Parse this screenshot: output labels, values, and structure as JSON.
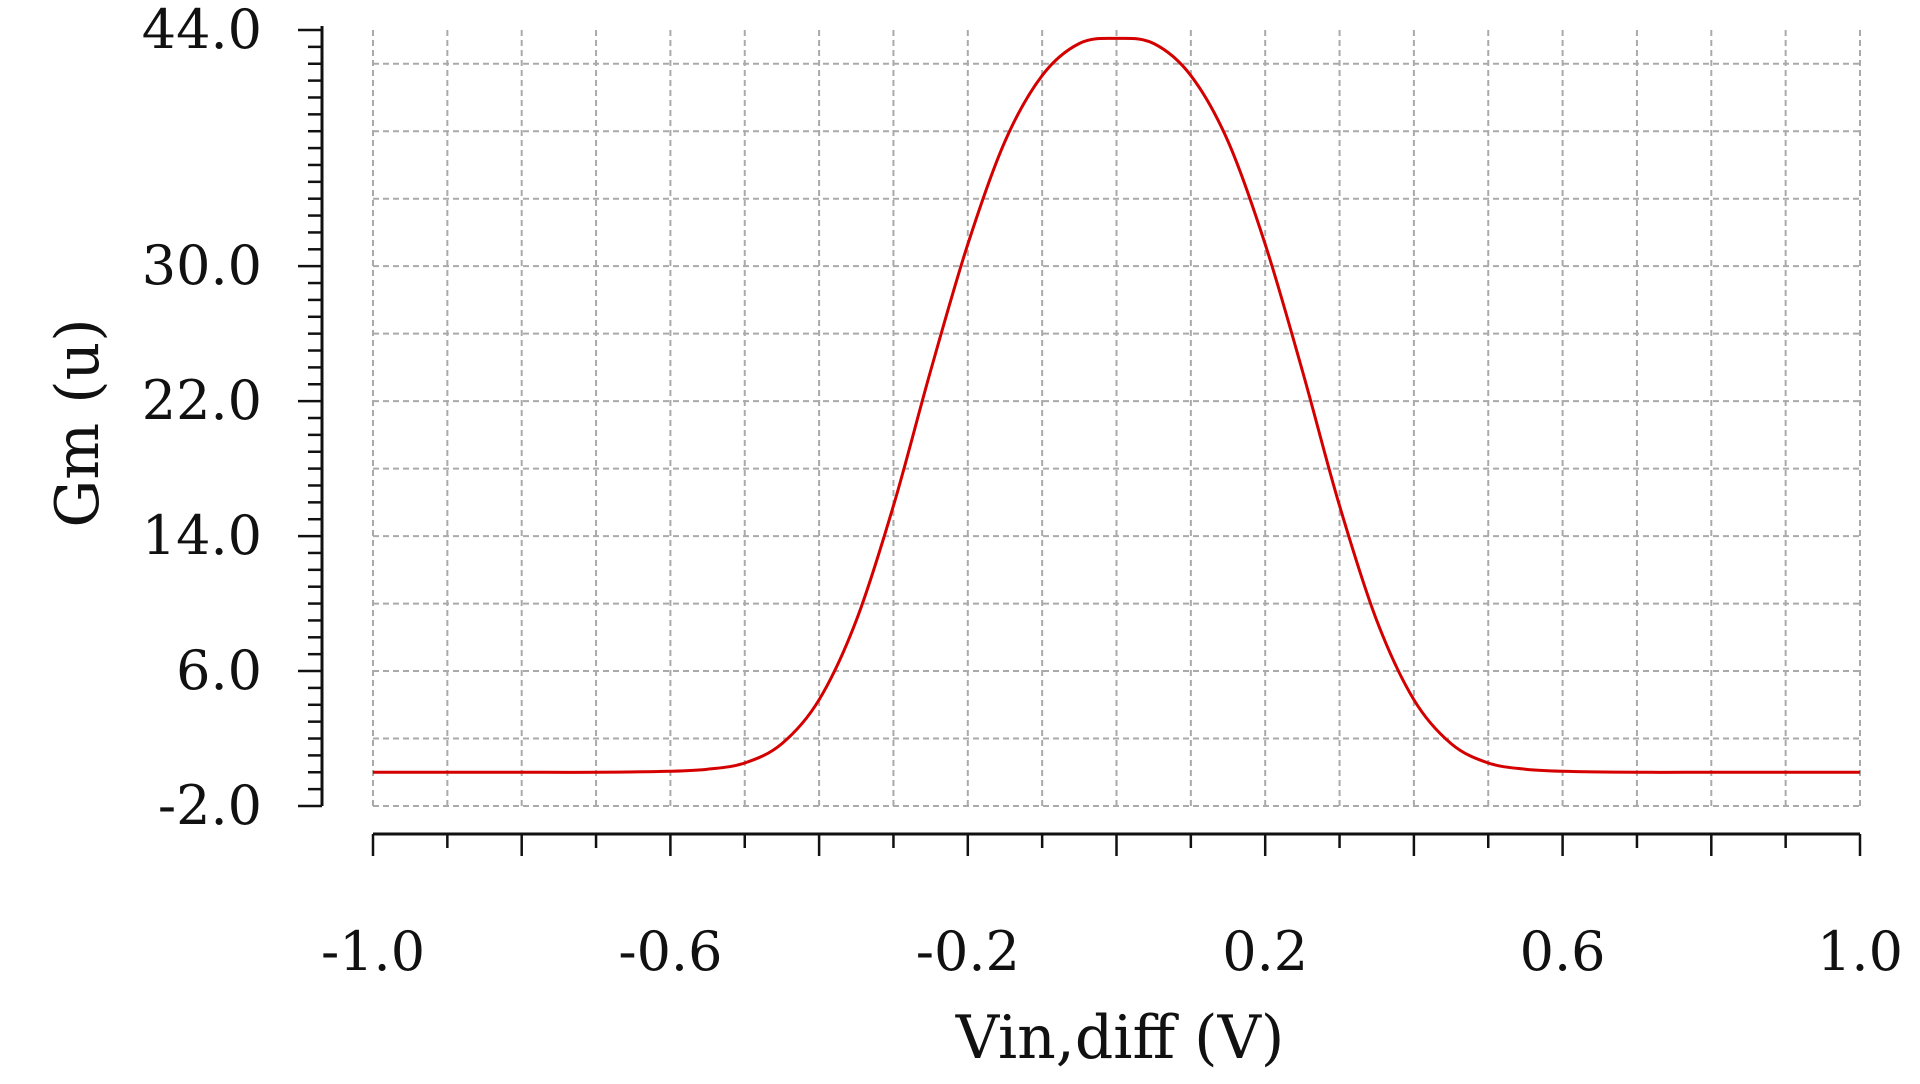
{
  "chart_data": {
    "type": "line",
    "title": "",
    "xlabel": "Vin,diff (V)",
    "ylabel": "Gm (u)",
    "xlim": [
      -1.0,
      1.0
    ],
    "ylim": [
      -2.0,
      44.0
    ],
    "x_tick_labels": [
      "-1.0",
      "-0.6",
      "-0.2",
      "0.2",
      "0.6",
      "1.0"
    ],
    "x_tick_values": [
      -1.0,
      -0.6,
      -0.2,
      0.2,
      0.6,
      1.0
    ],
    "y_tick_labels": [
      "44.0",
      "30.0",
      "22.0",
      "14.0",
      "6.0",
      "-2.0"
    ],
    "y_tick_values": [
      44.0,
      30.0,
      22.0,
      14.0,
      6.0,
      -2.0
    ],
    "grid": true,
    "series": [
      {
        "color": "#d40000",
        "x": [
          -1.0,
          -0.9,
          -0.8,
          -0.7,
          -0.6,
          -0.55,
          -0.5,
          -0.45,
          -0.4,
          -0.35,
          -0.3,
          -0.25,
          -0.2,
          -0.15,
          -0.1,
          -0.05,
          0.0,
          0.05,
          0.1,
          0.15,
          0.2,
          0.25,
          0.3,
          0.35,
          0.4,
          0.45,
          0.5,
          0.55,
          0.6,
          0.7,
          0.8,
          0.9,
          1.0
        ],
        "y": [
          0.0,
          0.0,
          0.0,
          0.0,
          0.06,
          0.18,
          0.55,
          1.7,
          4.3,
          9.0,
          15.8,
          23.8,
          31.3,
          37.4,
          41.3,
          43.2,
          43.5,
          43.2,
          41.3,
          37.4,
          31.3,
          23.8,
          15.8,
          9.0,
          4.3,
          1.7,
          0.55,
          0.18,
          0.06,
          0.0,
          0.0,
          0.0,
          0.0
        ]
      }
    ]
  }
}
